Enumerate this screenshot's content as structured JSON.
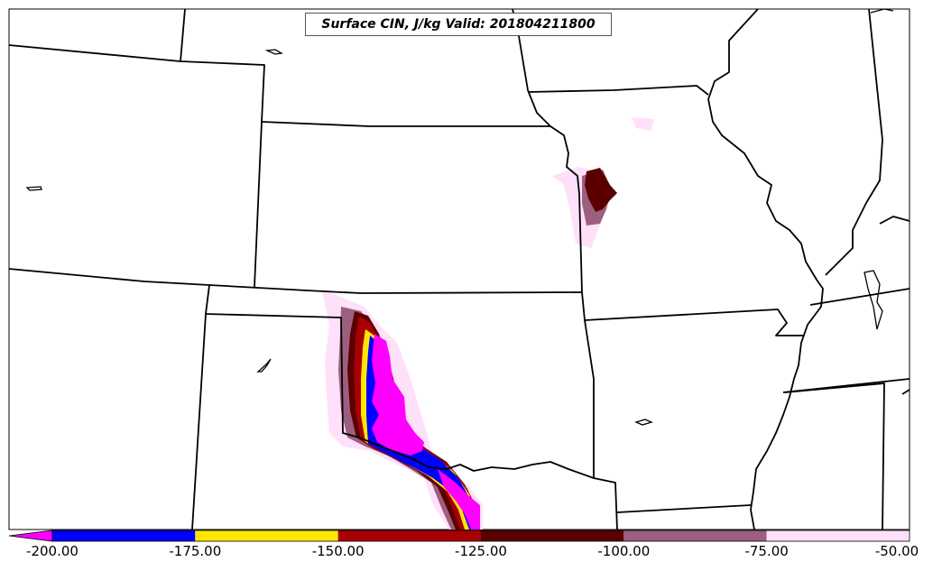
{
  "title": "Surface CIN, J/kg Valid: 201804211800",
  "colorbar": {
    "ticks": [
      "-200.00",
      "-175.00",
      "-150.00",
      "-125.00",
      "-100.00",
      "-75.00",
      "-50.00"
    ],
    "bins": [
      {
        "range": "< -200",
        "color": "#ff00ff"
      },
      {
        "range": "-200 to -175",
        "color": "#0000ff"
      },
      {
        "range": "-175 to -150",
        "color": "#ffe600"
      },
      {
        "range": "-150 to -125",
        "color": "#a80000"
      },
      {
        "range": "-125 to -100",
        "color": "#5a0000"
      },
      {
        "range": "-100 to -75",
        "color": "#9c5f80"
      },
      {
        "range": "-75 to -50",
        "color": "#ffe0fa"
      }
    ]
  },
  "colors": {
    "magenta": "#ff00ff",
    "blue": "#0000ff",
    "yellow": "#ffe600",
    "red": "#a80000",
    "darkred": "#5a0000",
    "mauve": "#9c5f80",
    "pink": "#ffe0fa"
  }
}
